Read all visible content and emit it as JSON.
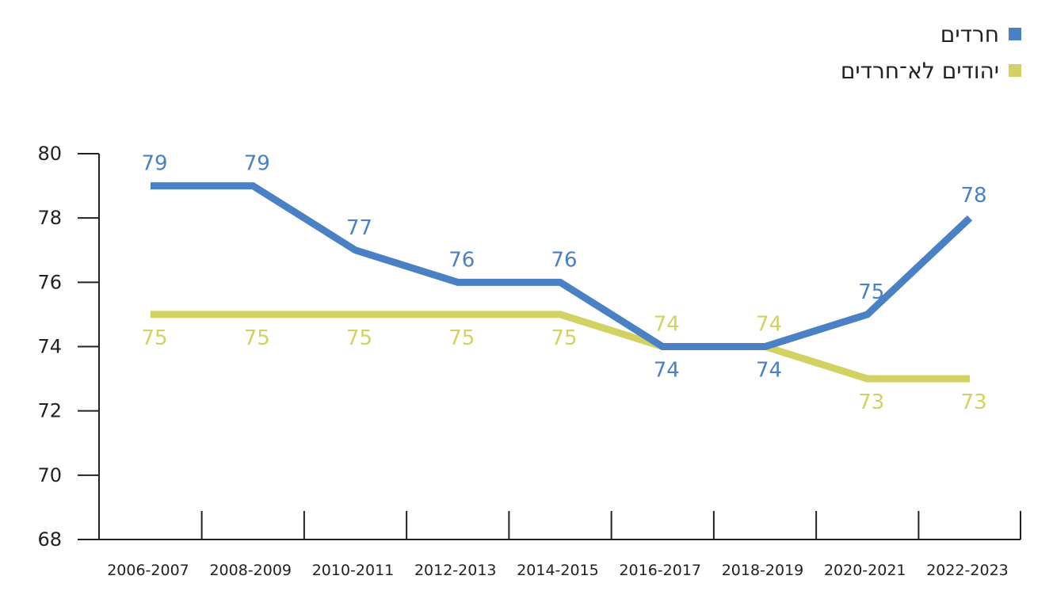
{
  "chart_data": {
    "type": "line",
    "categories": [
      "2006-2007",
      "2008-2009",
      "2010-2011",
      "2012-2013",
      "2014-2015",
      "2016-2017",
      "2018-2019",
      "2020-2021",
      "2022-2023"
    ],
    "ylim": [
      68,
      80
    ],
    "yticks": [
      68,
      70,
      72,
      74,
      76,
      78,
      80
    ],
    "series": [
      {
        "name": "חרדים",
        "color": "#4a80c4",
        "values": [
          79,
          79,
          77,
          76,
          76,
          74,
          74,
          75,
          78
        ]
      },
      {
        "name": "יהודים לא־חרדים",
        "color": "#d2d263",
        "values": [
          75,
          75,
          75,
          75,
          75,
          74,
          74,
          73,
          73
        ]
      }
    ],
    "legend_position": "top-right",
    "grid": false
  }
}
